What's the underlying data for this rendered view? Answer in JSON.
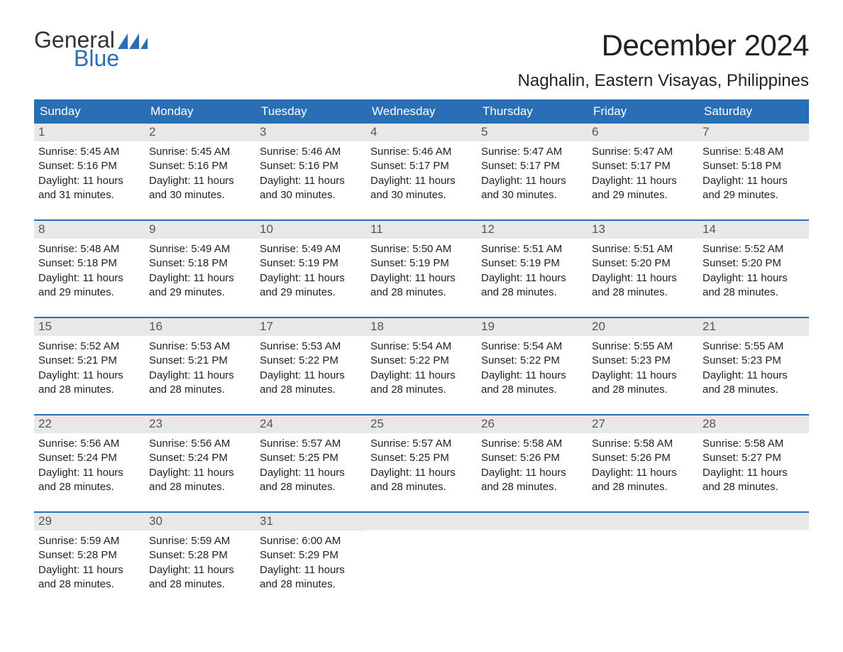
{
  "logo": {
    "general": "General",
    "blue": "Blue",
    "flag_color": "#2a6fb5"
  },
  "title": "December 2024",
  "location": "Naghalin, Eastern Visayas, Philippines",
  "colors": {
    "header_bg": "#2a6fb5",
    "header_text": "#ffffff",
    "daynum_bg": "#e8e8e8",
    "daynum_text": "#555555",
    "body_text": "#222222",
    "week_border": "#2a6fb5",
    "page_bg": "#ffffff"
  },
  "fonts": {
    "month_title_pt": 42,
    "location_pt": 24,
    "weekday_pt": 17,
    "daynum_pt": 17,
    "body_pt": 15
  },
  "weekdays": [
    "Sunday",
    "Monday",
    "Tuesday",
    "Wednesday",
    "Thursday",
    "Friday",
    "Saturday"
  ],
  "labels": {
    "sunrise": "Sunrise:",
    "sunset": "Sunset:",
    "daylight": "Daylight:"
  },
  "days": [
    {
      "n": "1",
      "sunrise": "5:45 AM",
      "sunset": "5:16 PM",
      "daylight1": "11 hours",
      "daylight2": "and 31 minutes."
    },
    {
      "n": "2",
      "sunrise": "5:45 AM",
      "sunset": "5:16 PM",
      "daylight1": "11 hours",
      "daylight2": "and 30 minutes."
    },
    {
      "n": "3",
      "sunrise": "5:46 AM",
      "sunset": "5:16 PM",
      "daylight1": "11 hours",
      "daylight2": "and 30 minutes."
    },
    {
      "n": "4",
      "sunrise": "5:46 AM",
      "sunset": "5:17 PM",
      "daylight1": "11 hours",
      "daylight2": "and 30 minutes."
    },
    {
      "n": "5",
      "sunrise": "5:47 AM",
      "sunset": "5:17 PM",
      "daylight1": "11 hours",
      "daylight2": "and 30 minutes."
    },
    {
      "n": "6",
      "sunrise": "5:47 AM",
      "sunset": "5:17 PM",
      "daylight1": "11 hours",
      "daylight2": "and 29 minutes."
    },
    {
      "n": "7",
      "sunrise": "5:48 AM",
      "sunset": "5:18 PM",
      "daylight1": "11 hours",
      "daylight2": "and 29 minutes."
    },
    {
      "n": "8",
      "sunrise": "5:48 AM",
      "sunset": "5:18 PM",
      "daylight1": "11 hours",
      "daylight2": "and 29 minutes."
    },
    {
      "n": "9",
      "sunrise": "5:49 AM",
      "sunset": "5:18 PM",
      "daylight1": "11 hours",
      "daylight2": "and 29 minutes."
    },
    {
      "n": "10",
      "sunrise": "5:49 AM",
      "sunset": "5:19 PM",
      "daylight1": "11 hours",
      "daylight2": "and 29 minutes."
    },
    {
      "n": "11",
      "sunrise": "5:50 AM",
      "sunset": "5:19 PM",
      "daylight1": "11 hours",
      "daylight2": "and 28 minutes."
    },
    {
      "n": "12",
      "sunrise": "5:51 AM",
      "sunset": "5:19 PM",
      "daylight1": "11 hours",
      "daylight2": "and 28 minutes."
    },
    {
      "n": "13",
      "sunrise": "5:51 AM",
      "sunset": "5:20 PM",
      "daylight1": "11 hours",
      "daylight2": "and 28 minutes."
    },
    {
      "n": "14",
      "sunrise": "5:52 AM",
      "sunset": "5:20 PM",
      "daylight1": "11 hours",
      "daylight2": "and 28 minutes."
    },
    {
      "n": "15",
      "sunrise": "5:52 AM",
      "sunset": "5:21 PM",
      "daylight1": "11 hours",
      "daylight2": "and 28 minutes."
    },
    {
      "n": "16",
      "sunrise": "5:53 AM",
      "sunset": "5:21 PM",
      "daylight1": "11 hours",
      "daylight2": "and 28 minutes."
    },
    {
      "n": "17",
      "sunrise": "5:53 AM",
      "sunset": "5:22 PM",
      "daylight1": "11 hours",
      "daylight2": "and 28 minutes."
    },
    {
      "n": "18",
      "sunrise": "5:54 AM",
      "sunset": "5:22 PM",
      "daylight1": "11 hours",
      "daylight2": "and 28 minutes."
    },
    {
      "n": "19",
      "sunrise": "5:54 AM",
      "sunset": "5:22 PM",
      "daylight1": "11 hours",
      "daylight2": "and 28 minutes."
    },
    {
      "n": "20",
      "sunrise": "5:55 AM",
      "sunset": "5:23 PM",
      "daylight1": "11 hours",
      "daylight2": "and 28 minutes."
    },
    {
      "n": "21",
      "sunrise": "5:55 AM",
      "sunset": "5:23 PM",
      "daylight1": "11 hours",
      "daylight2": "and 28 minutes."
    },
    {
      "n": "22",
      "sunrise": "5:56 AM",
      "sunset": "5:24 PM",
      "daylight1": "11 hours",
      "daylight2": "and 28 minutes."
    },
    {
      "n": "23",
      "sunrise": "5:56 AM",
      "sunset": "5:24 PM",
      "daylight1": "11 hours",
      "daylight2": "and 28 minutes."
    },
    {
      "n": "24",
      "sunrise": "5:57 AM",
      "sunset": "5:25 PM",
      "daylight1": "11 hours",
      "daylight2": "and 28 minutes."
    },
    {
      "n": "25",
      "sunrise": "5:57 AM",
      "sunset": "5:25 PM",
      "daylight1": "11 hours",
      "daylight2": "and 28 minutes."
    },
    {
      "n": "26",
      "sunrise": "5:58 AM",
      "sunset": "5:26 PM",
      "daylight1": "11 hours",
      "daylight2": "and 28 minutes."
    },
    {
      "n": "27",
      "sunrise": "5:58 AM",
      "sunset": "5:26 PM",
      "daylight1": "11 hours",
      "daylight2": "and 28 minutes."
    },
    {
      "n": "28",
      "sunrise": "5:58 AM",
      "sunset": "5:27 PM",
      "daylight1": "11 hours",
      "daylight2": "and 28 minutes."
    },
    {
      "n": "29",
      "sunrise": "5:59 AM",
      "sunset": "5:28 PM",
      "daylight1": "11 hours",
      "daylight2": "and 28 minutes."
    },
    {
      "n": "30",
      "sunrise": "5:59 AM",
      "sunset": "5:28 PM",
      "daylight1": "11 hours",
      "daylight2": "and 28 minutes."
    },
    {
      "n": "31",
      "sunrise": "6:00 AM",
      "sunset": "5:29 PM",
      "daylight1": "11 hours",
      "daylight2": "and 28 minutes."
    }
  ]
}
